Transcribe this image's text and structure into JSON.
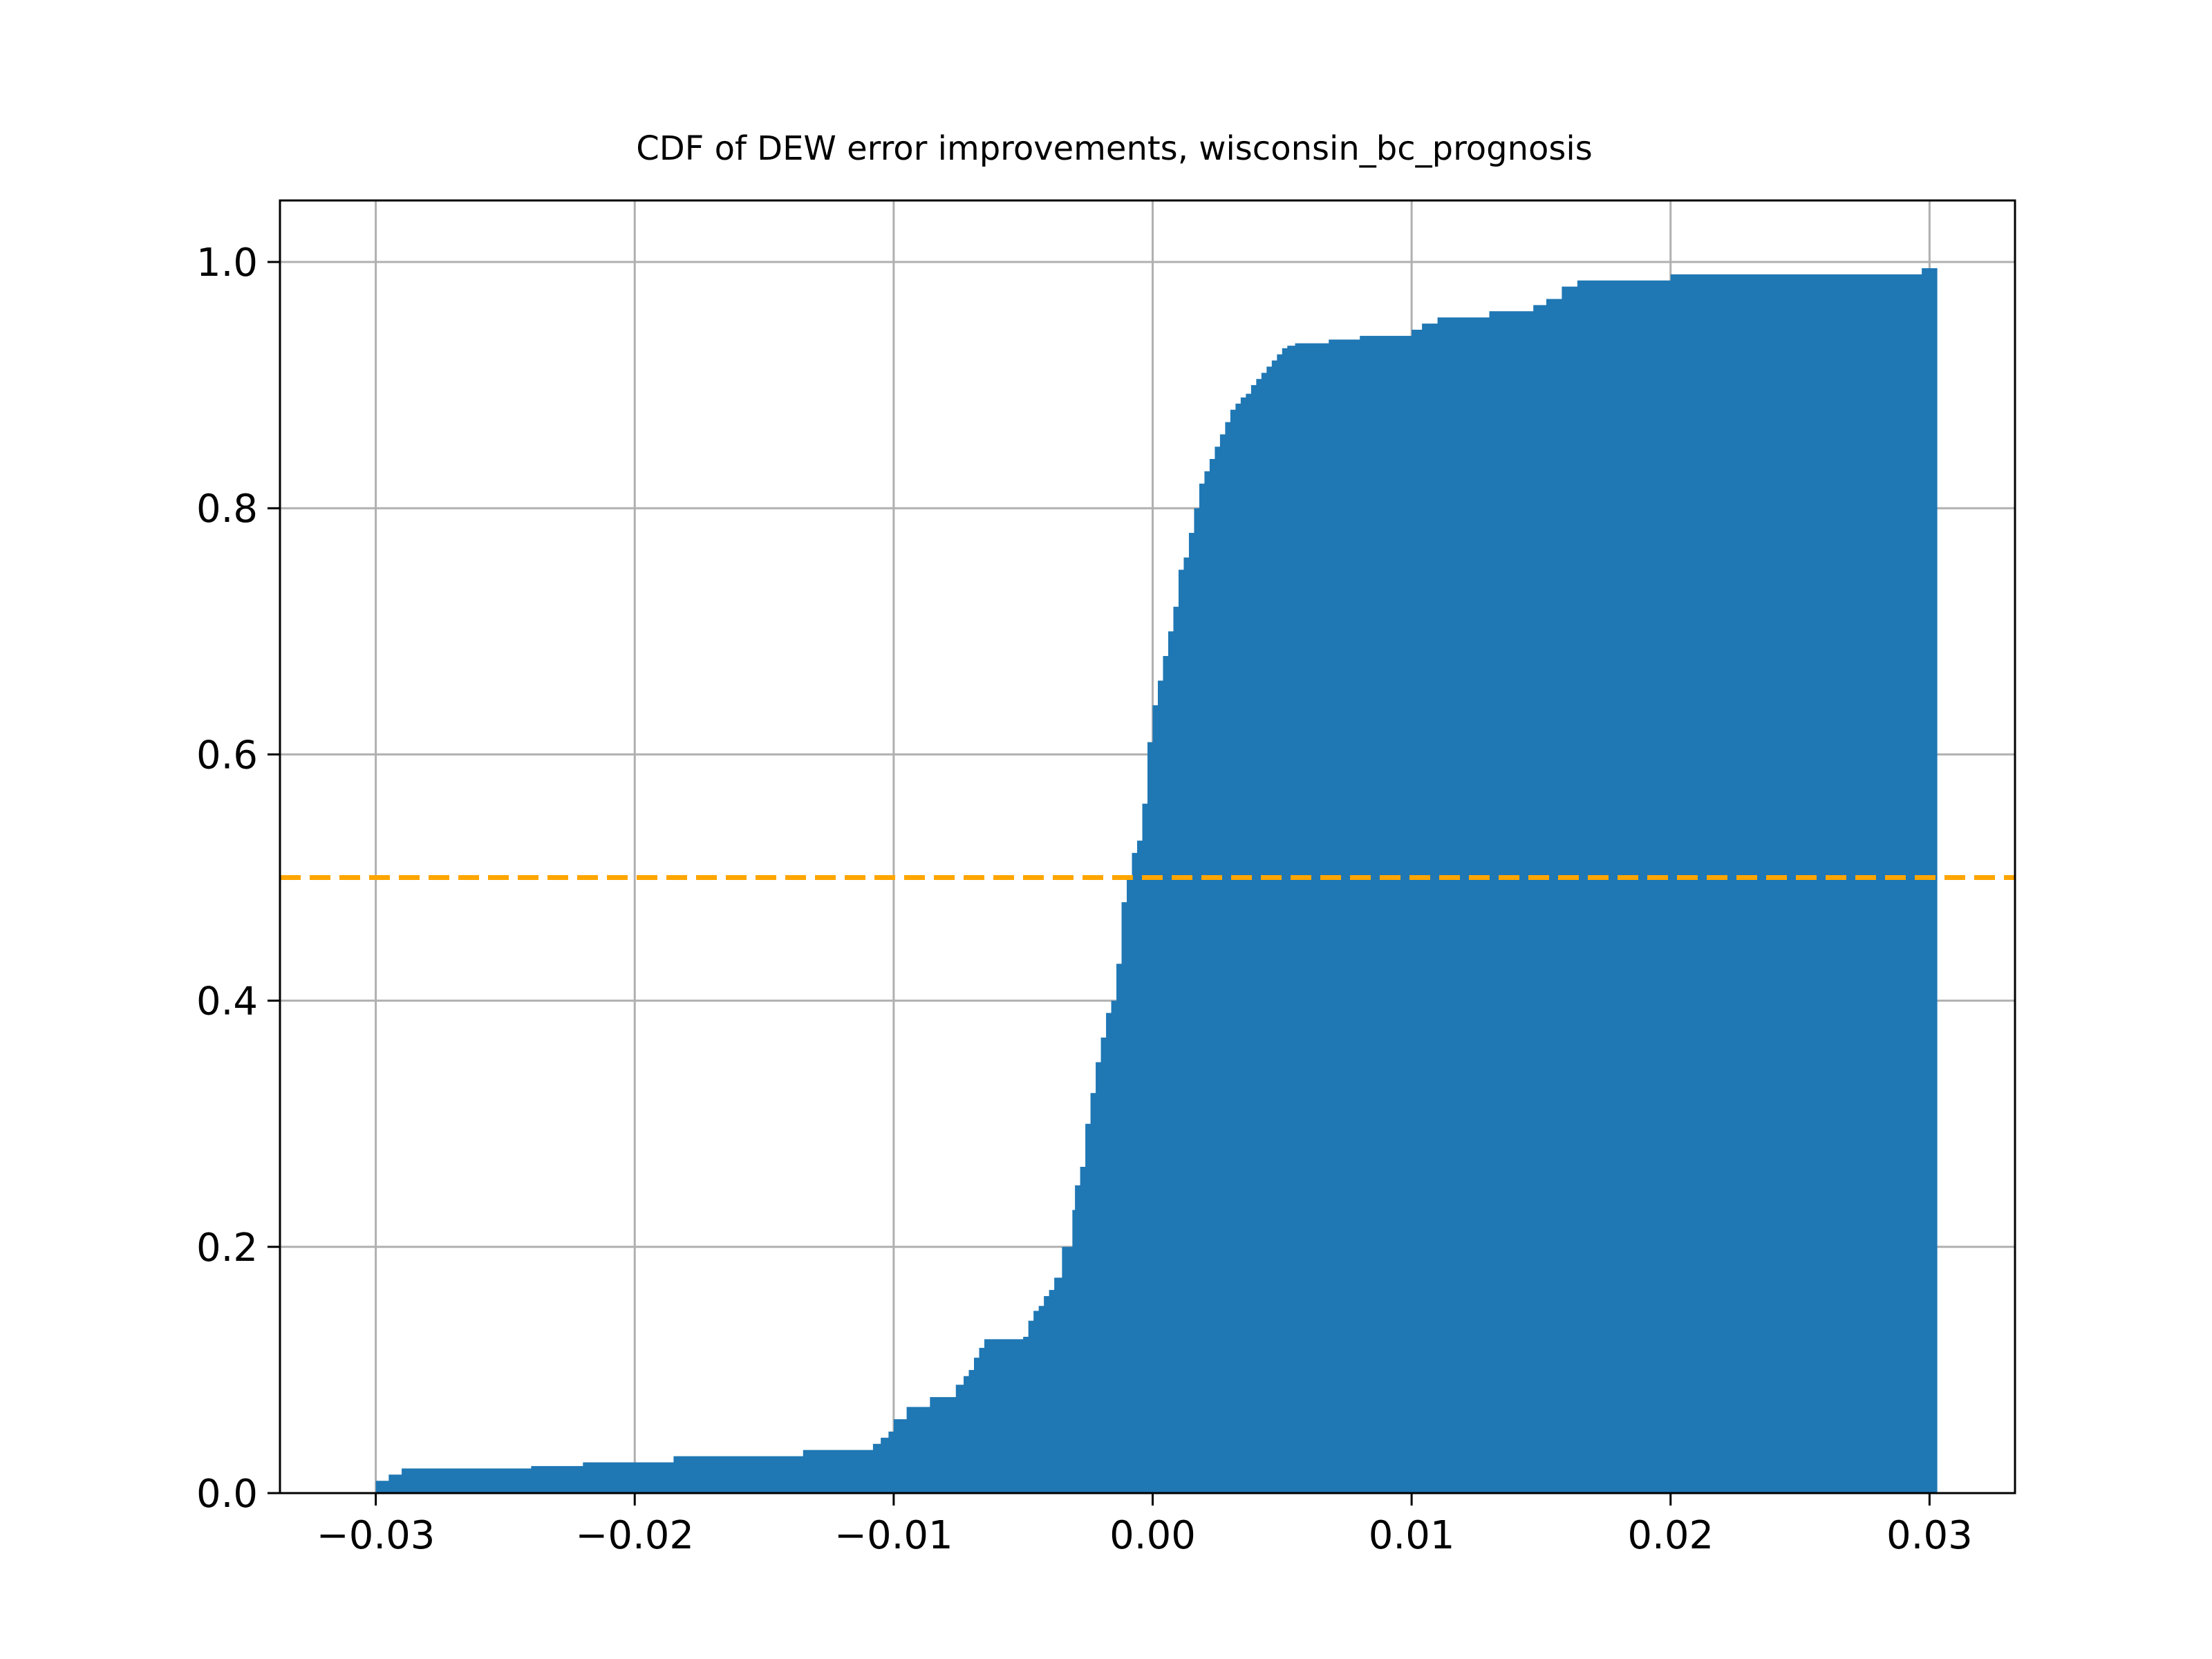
{
  "chart_data": {
    "type": "area",
    "title": "CDF of DEW error improvements, wisconsin_bc_prognosis",
    "xlabel": "",
    "ylabel": "",
    "xlim": [
      -0.0337,
      0.0333
    ],
    "ylim": [
      0.0,
      1.05
    ],
    "grid": true,
    "x_ticks": [
      -0.03,
      -0.02,
      -0.01,
      0.0,
      0.01,
      0.02,
      0.03
    ],
    "x_tick_labels": [
      "−0.03",
      "−0.02",
      "−0.01",
      "0.00",
      "0.01",
      "0.02",
      "0.03"
    ],
    "y_ticks": [
      0.0,
      0.2,
      0.4,
      0.6,
      0.8,
      1.0
    ],
    "y_tick_labels": [
      "0.0",
      "0.2",
      "0.4",
      "0.6",
      "0.8",
      "1.0"
    ],
    "colors": {
      "fill": "#1f77b4",
      "reference_line": "#ffa500",
      "grid": "#b0b0b0"
    },
    "series": [
      {
        "x": [
          -0.0308,
          -0.03,
          -0.0295,
          -0.029,
          -0.024,
          -0.022,
          -0.0185,
          -0.0135,
          -0.0108,
          -0.0105,
          -0.0102,
          -0.01,
          -0.0095,
          -0.0086,
          -0.0076,
          -0.0073,
          -0.0071,
          -0.0069,
          -0.0067,
          -0.0065,
          -0.005,
          -0.0048,
          -0.0046,
          -0.0044,
          -0.0042,
          -0.004,
          -0.0038,
          -0.0035,
          -0.0031,
          -0.003,
          -0.0028,
          -0.0026,
          -0.0024,
          -0.0022,
          -0.002,
          -0.0018,
          -0.0016,
          -0.0014,
          -0.0012,
          -0.001,
          -0.0008,
          -0.0006,
          -0.0004,
          -0.0002,
          0.0,
          0.0002,
          0.0004,
          0.0006,
          0.0008,
          0.001,
          0.0012,
          0.0014,
          0.0016,
          0.0018,
          0.002,
          0.0022,
          0.0024,
          0.0026,
          0.0028,
          0.003,
          0.0032,
          0.0034,
          0.0036,
          0.0038,
          0.004,
          0.0042,
          0.0044,
          0.0046,
          0.0048,
          0.005,
          0.0052,
          0.0055,
          0.0068,
          0.008,
          0.01,
          0.0104,
          0.011,
          0.013,
          0.0147,
          0.0152,
          0.0158,
          0.0164,
          0.02,
          0.0292,
          0.0297,
          0.0303
        ],
        "values": [
          0.0,
          0.01,
          0.015,
          0.02,
          0.022,
          0.025,
          0.03,
          0.035,
          0.04,
          0.045,
          0.05,
          0.06,
          0.07,
          0.078,
          0.088,
          0.095,
          0.1,
          0.11,
          0.118,
          0.125,
          0.127,
          0.14,
          0.148,
          0.152,
          0.16,
          0.165,
          0.175,
          0.2,
          0.23,
          0.25,
          0.265,
          0.3,
          0.325,
          0.35,
          0.37,
          0.39,
          0.4,
          0.43,
          0.48,
          0.5,
          0.52,
          0.53,
          0.56,
          0.61,
          0.64,
          0.66,
          0.68,
          0.7,
          0.72,
          0.75,
          0.76,
          0.78,
          0.8,
          0.82,
          0.83,
          0.84,
          0.85,
          0.86,
          0.87,
          0.88,
          0.885,
          0.89,
          0.893,
          0.9,
          0.905,
          0.91,
          0.915,
          0.92,
          0.925,
          0.93,
          0.932,
          0.934,
          0.937,
          0.94,
          0.945,
          0.95,
          0.955,
          0.96,
          0.965,
          0.97,
          0.98,
          0.985,
          0.99,
          0.99,
          0.995,
          1.0
        ]
      }
    ],
    "reference_line": {
      "y": 0.5,
      "style": "dashed"
    }
  }
}
